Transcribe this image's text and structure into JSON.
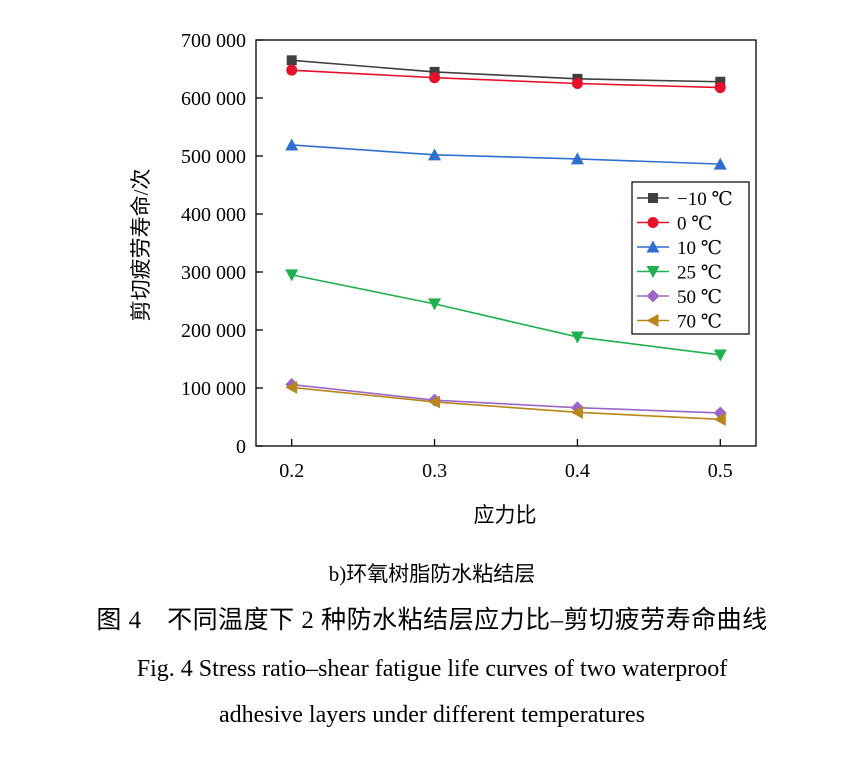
{
  "chart_data": {
    "type": "line",
    "xlabel": "应力比",
    "ylabel": "剪切疲劳寿命/次",
    "x": [
      0.2,
      0.3,
      0.4,
      0.5
    ],
    "x_tick_labels": [
      "0.2",
      "0.3",
      "0.4",
      "0.5"
    ],
    "xlim": [
      0.175,
      0.525
    ],
    "ylim": [
      0,
      700000
    ],
    "y_ticks": [
      0,
      100000,
      200000,
      300000,
      400000,
      500000,
      600000,
      700000
    ],
    "y_tick_labels": [
      "0",
      "100 000",
      "200 000",
      "300 000",
      "400 000",
      "500 000",
      "600 000",
      "700 000"
    ],
    "legend_position": "right-middle",
    "grid": false,
    "series": [
      {
        "name": "−10 ℃",
        "values": [
          665000,
          645000,
          633000,
          628000
        ],
        "color": "#404040",
        "marker": "square"
      },
      {
        "name": "0 ℃",
        "values": [
          648000,
          635000,
          625000,
          618000
        ],
        "color": "#e8102a",
        "marker": "circle"
      },
      {
        "name": "10 ℃",
        "values": [
          519000,
          502000,
          495000,
          486000
        ],
        "color": "#2e6fcf",
        "marker": "triangle-up"
      },
      {
        "name": "25 ℃",
        "values": [
          295000,
          245000,
          188000,
          157000
        ],
        "color": "#1fb050",
        "marker": "triangle-down"
      },
      {
        "name": "50 ℃",
        "values": [
          106000,
          79000,
          66000,
          57000
        ],
        "color": "#9b66c9",
        "marker": "diamond"
      },
      {
        "name": "70 ℃",
        "values": [
          101000,
          76000,
          58000,
          46000
        ],
        "color": "#b8861a",
        "marker": "triangle-left"
      }
    ]
  },
  "captions": {
    "sub": "b)环氧树脂防水粘结层",
    "figure_cn": "图 4　不同温度下 2 种防水粘结层应力比–剪切疲劳寿命曲线",
    "figure_en_line1": "Fig. 4 Stress ratio–shear fatigue life curves of two waterproof",
    "figure_en_line2": "adhesive layers under different temperatures"
  }
}
